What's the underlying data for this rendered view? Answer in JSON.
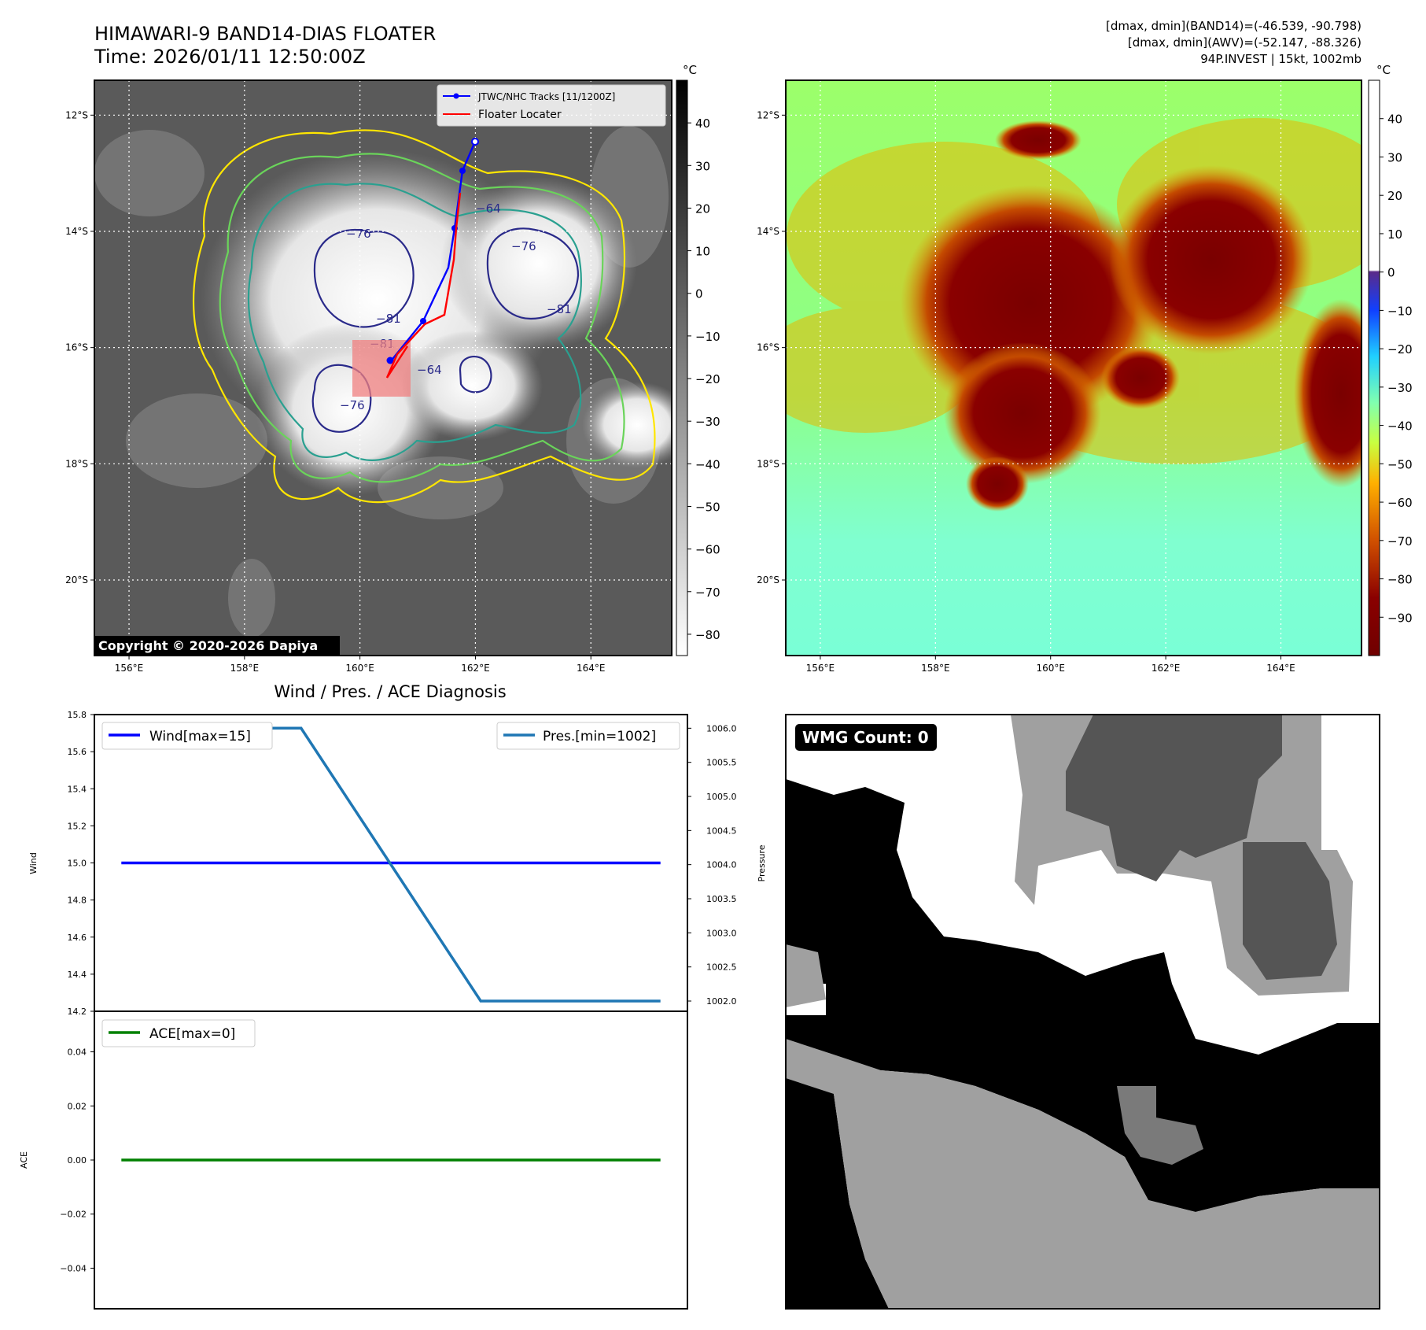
{
  "header": {
    "title_line1": "HIMAWARI-9 BAND14-DIAS FLOATER",
    "title_line2": "Time: 2026/01/11 12:50:00Z",
    "stats_line1": "[dmax, dmin](BAND14)=(-46.539, -90.798)",
    "stats_line2": "[dmax, dmin](AWV)=(-52.147, -88.326)",
    "stats_line3": "94P.INVEST | 15kt, 1002mb"
  },
  "copyright": "Copyright © 2020-2026 Dapiya",
  "colors": {
    "wind": "#0000ff",
    "pressure": "#1f77b4",
    "ace": "#008000",
    "track": "#0000ff",
    "locater": "#ff0000",
    "locater_box": "#f08080"
  },
  "maps": {
    "lat_ticks": [
      "12°S",
      "14°S",
      "16°S",
      "18°S",
      "20°S"
    ],
    "lon_ticks": [
      "156°E",
      "158°E",
      "160°E",
      "162°E",
      "164°E"
    ],
    "lat_values": [
      -12,
      -14,
      -16,
      -18,
      -20
    ],
    "lon_values": [
      156,
      158,
      160,
      162,
      164
    ],
    "lat_range": [
      -21.3,
      -11.4
    ],
    "lon_range": [
      155.4,
      165.4
    ],
    "unit": "°C",
    "ir_colorbar_ticks": [
      "40",
      "30",
      "20",
      "10",
      "0",
      "−10",
      "−20",
      "−30",
      "−40",
      "−50",
      "−60",
      "−70",
      "−80"
    ],
    "ir_colorbar_values": [
      40,
      30,
      20,
      10,
      0,
      -10,
      -20,
      -30,
      -40,
      -50,
      -60,
      -70,
      -80
    ],
    "ir_colorbar_range": [
      -85,
      50
    ],
    "awv_colorbar_ticks": [
      "40",
      "30",
      "20",
      "10",
      "0",
      "−10",
      "−20",
      "−30",
      "−40",
      "−50",
      "−60",
      "−70",
      "−80",
      "−90"
    ],
    "awv_colorbar_values": [
      40,
      30,
      20,
      10,
      0,
      -10,
      -20,
      -30,
      -40,
      -50,
      -60,
      -70,
      -80,
      -90
    ],
    "awv_colorbar_range": [
      -100,
      50
    ],
    "legend": {
      "tracks": "JTWC/NHC Tracks [11/1200Z]",
      "locater": "Floater Locater"
    },
    "contour_labels": [
      "−76",
      "−76",
      "−64",
      "−81",
      "−76",
      "−64",
      "−81",
      "−81"
    ]
  },
  "chart_data": [
    {
      "type": "line",
      "title": "Wind / Pres. / ACE Diagnosis",
      "ylabel": "Wind",
      "ylabel_right": "Pressure",
      "ylim": [
        14.2,
        15.8
      ],
      "ylim_right": [
        1001.85,
        1006.2
      ],
      "yticks": [
        "15.8",
        "15.6",
        "15.4",
        "15.2",
        "15.0",
        "14.8",
        "14.6",
        "14.4",
        "14.2"
      ],
      "ytick_values": [
        15.8,
        15.6,
        15.4,
        15.2,
        15.0,
        14.8,
        14.6,
        14.4,
        14.2
      ],
      "yticks_right": [
        "1006.0",
        "1005.5",
        "1005.0",
        "1004.5",
        "1004.0",
        "1003.5",
        "1003.0",
        "1002.5",
        "1002.0"
      ],
      "ytick_values_right": [
        1006.0,
        1005.5,
        1005.0,
        1004.5,
        1004.0,
        1003.5,
        1003.0,
        1002.5,
        1002.0
      ],
      "x": [
        0,
        1,
        2,
        3
      ],
      "xlim": [
        -0.15,
        3.15
      ],
      "series": [
        {
          "name": "Wind[max=15]",
          "axis": "left",
          "values": [
            15,
            15,
            15,
            15
          ]
        },
        {
          "name": "Pres.[min=1002]",
          "axis": "right",
          "values": [
            1006,
            1006,
            1002,
            1002
          ]
        }
      ]
    },
    {
      "type": "line",
      "ylabel": "ACE",
      "ylim": [
        -0.055,
        0.055
      ],
      "yticks": [
        "0.04",
        "0.02",
        "0.00",
        "−0.02",
        "−0.04"
      ],
      "ytick_values": [
        0.04,
        0.02,
        0.0,
        -0.02,
        -0.04
      ],
      "x": [
        0,
        1,
        2,
        3
      ],
      "xlim": [
        -0.15,
        3.15
      ],
      "series": [
        {
          "name": "ACE[max=0]",
          "values": [
            0,
            0,
            0,
            0
          ]
        }
      ]
    }
  ],
  "wmg": {
    "label": "WMG Count: 0"
  }
}
